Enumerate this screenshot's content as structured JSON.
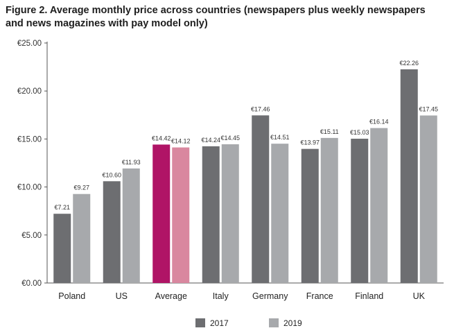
{
  "chart_data": {
    "type": "bar",
    "title": "Figure 2. Average monthly price across countries (newspapers plus weekly newspapers and news magazines with pay model only)",
    "categories": [
      "Poland",
      "US",
      "Average",
      "Italy",
      "Germany",
      "France",
      "Finland",
      "UK"
    ],
    "series": [
      {
        "name": "2017",
        "color": "#6d6e71",
        "values": [
          7.21,
          10.6,
          14.42,
          14.24,
          17.46,
          13.97,
          15.03,
          22.26
        ],
        "labels": [
          "€7.21",
          "€10.60",
          "€14.42",
          "€14.24",
          "€17.46",
          "€13.97",
          "€15.03",
          "€22.26"
        ]
      },
      {
        "name": "2019",
        "color": "#a7a9ac",
        "values": [
          9.27,
          11.93,
          14.12,
          14.45,
          14.51,
          15.11,
          16.14,
          17.45
        ],
        "labels": [
          "€9.27",
          "€11.93",
          "€14.12",
          "€14.45",
          "€14.51",
          "€15.11",
          "€16.14",
          "€17.45"
        ]
      }
    ],
    "highlight": {
      "category": "Average",
      "colors": [
        "#b01466",
        "#d9879f"
      ]
    },
    "ylim": [
      0,
      25
    ],
    "yticks": [
      0,
      5,
      10,
      15,
      20,
      25
    ],
    "ytick_labels": [
      "€0.00",
      "€5.00",
      "€10.00",
      "€15.00",
      "€20.00",
      "€25.00"
    ],
    "xlabel": "",
    "ylabel": "",
    "grid": false,
    "legend_position": "bottom-center"
  }
}
